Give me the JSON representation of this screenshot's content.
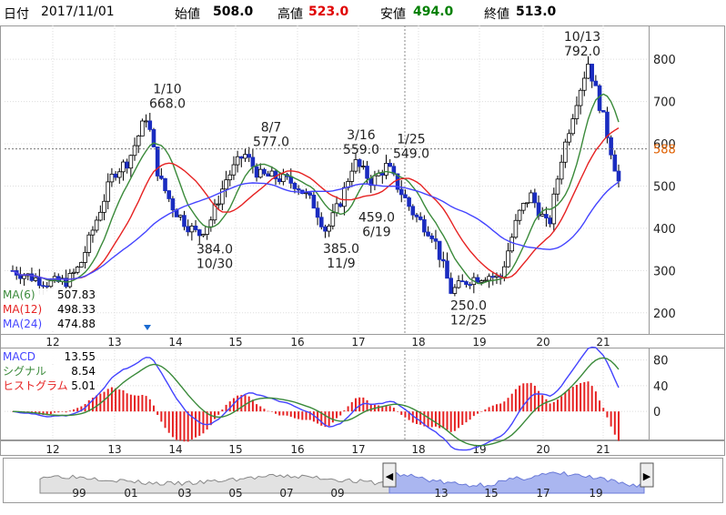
{
  "header": {
    "date_label": "日付",
    "date": "2017/11/01",
    "open_label": "始値",
    "open": "508.0",
    "high_label": "高値",
    "high": "523.0",
    "low_label": "安値",
    "low": "494.0",
    "close_label": "終値",
    "close": "513.0"
  },
  "colors": {
    "up": "#ffffff",
    "down": "#1a2cc0",
    "ma6": "#3a8a3a",
    "ma12": "#e62222",
    "ma24": "#4444ff",
    "macd": "#4444ff",
    "signal": "#3a8a3a",
    "histogram": "#e62222",
    "last_price": "#e06000",
    "navigator_fill": "#aab6f0",
    "high_value": "#e00000",
    "low_value": "#008000"
  },
  "chart_data": [
    {
      "type": "candlestick",
      "ylim": [
        150,
        880
      ],
      "yticks": [
        200,
        300,
        400,
        500,
        600,
        700,
        800
      ],
      "x_categories": [
        "12",
        "13",
        "14",
        "15",
        "16",
        "17",
        "18",
        "19",
        "20",
        "21"
      ],
      "last_price": {
        "value": 588,
        "label": "588"
      },
      "annotations": [
        {
          "date": "1/10",
          "value": "668.0",
          "at": 668,
          "position": "above"
        },
        {
          "date": "10/30",
          "value": "384.0",
          "at": 384,
          "position": "below"
        },
        {
          "date": "8/7",
          "value": "577.0",
          "at": 577,
          "position": "above"
        },
        {
          "date": "3/16",
          "value": "559.0",
          "at": 559,
          "position": "above"
        },
        {
          "date": "1/25",
          "value": "549.0",
          "at": 549,
          "position": "above"
        },
        {
          "date": "11/9",
          "value": "385.0",
          "at": 385,
          "position": "below"
        },
        {
          "date": "6/19",
          "value": "459.0",
          "at": 459,
          "position": "below"
        },
        {
          "date": "12/25",
          "value": "250.0",
          "at": 250,
          "position": "below"
        },
        {
          "date": "10/13",
          "value": "792.0",
          "at": 792,
          "position": "above"
        }
      ],
      "legend": [
        {
          "name": "MA(6)",
          "value": "507.83"
        },
        {
          "name": "MA(12)",
          "value": "498.33"
        },
        {
          "name": "MA(24)",
          "value": "474.88"
        }
      ]
    },
    {
      "type": "line",
      "ylim": [
        -45,
        95
      ],
      "yticks": [
        0,
        40,
        80
      ],
      "x_categories": [
        "12",
        "13",
        "14",
        "15",
        "16",
        "17",
        "18",
        "19",
        "20",
        "21"
      ],
      "legend": [
        {
          "name": "MACD",
          "value": "13.55"
        },
        {
          "name": "シグナル",
          "value": "8.54"
        },
        {
          "name": "ヒストグラム",
          "value": "5.01"
        }
      ]
    },
    {
      "type": "area",
      "x_tick_labels": [
        "99",
        "01",
        "03",
        "05",
        "07",
        "09",
        "13",
        "15",
        "17",
        "19"
      ]
    }
  ],
  "navigator": {
    "left_handle": "◀",
    "right_handle": "▶"
  }
}
